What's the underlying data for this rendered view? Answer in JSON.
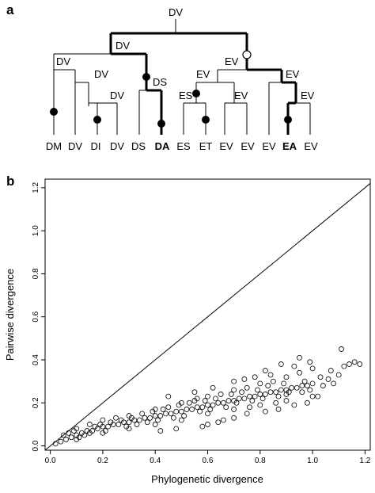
{
  "panel_a": {
    "label": "a",
    "tree": {
      "root_label": "DV",
      "node_labels": [
        "DV",
        "DV",
        "DV",
        "DV",
        "DS",
        "EV",
        "EV",
        "ES",
        "EV",
        "EV",
        "EV"
      ],
      "leaves": [
        {
          "text": "DM",
          "bold": false
        },
        {
          "text": "DV",
          "bold": false
        },
        {
          "text": "DI",
          "bold": false
        },
        {
          "text": "DV",
          "bold": false
        },
        {
          "text": "DS",
          "bold": false
        },
        {
          "text": "DA",
          "bold": true
        },
        {
          "text": "ES",
          "bold": false
        },
        {
          "text": "ET",
          "bold": false
        },
        {
          "text": "EV",
          "bold": false
        },
        {
          "text": "EV",
          "bold": false
        },
        {
          "text": "EV",
          "bold": false
        },
        {
          "text": "EA",
          "bold": true
        },
        {
          "text": "EV",
          "bold": false
        }
      ]
    }
  },
  "panel_b": {
    "label": "b",
    "chart_data": {
      "type": "scatter",
      "xlabel": "Phylogenetic divergence",
      "ylabel": "Pairwise divergence",
      "xlim": [
        -0.02,
        1.22
      ],
      "ylim": [
        -0.02,
        1.24
      ],
      "x_ticks": [
        "0.0",
        "0.2",
        "0.4",
        "0.6",
        "0.8",
        "1.0",
        "1.2"
      ],
      "y_ticks": [
        "0.0",
        "0.2",
        "0.4",
        "0.6",
        "0.8",
        "1.0",
        "1.2"
      ],
      "reference_line": {
        "slope": 1,
        "intercept": 0
      },
      "grid": false,
      "points": [
        [
          0.02,
          0.01
        ],
        [
          0.04,
          0.02
        ],
        [
          0.06,
          0.03
        ],
        [
          0.08,
          0.04
        ],
        [
          0.1,
          0.05
        ],
        [
          0.12,
          0.06
        ],
        [
          0.14,
          0.07
        ],
        [
          0.16,
          0.07
        ],
        [
          0.18,
          0.08
        ],
        [
          0.2,
          0.09
        ],
        [
          0.22,
          0.09
        ],
        [
          0.24,
          0.1
        ],
        [
          0.26,
          0.1
        ],
        [
          0.28,
          0.11
        ],
        [
          0.3,
          0.11
        ],
        [
          0.32,
          0.12
        ],
        [
          0.34,
          0.12
        ],
        [
          0.36,
          0.13
        ],
        [
          0.38,
          0.13
        ],
        [
          0.4,
          0.14
        ],
        [
          0.42,
          0.14
        ],
        [
          0.44,
          0.15
        ],
        [
          0.46,
          0.15
        ],
        [
          0.48,
          0.16
        ],
        [
          0.5,
          0.16
        ],
        [
          0.52,
          0.17
        ],
        [
          0.54,
          0.17
        ],
        [
          0.56,
          0.18
        ],
        [
          0.58,
          0.18
        ],
        [
          0.6,
          0.19
        ],
        [
          0.62,
          0.19
        ],
        [
          0.64,
          0.2
        ],
        [
          0.66,
          0.2
        ],
        [
          0.68,
          0.21
        ],
        [
          0.7,
          0.21
        ],
        [
          0.72,
          0.22
        ],
        [
          0.74,
          0.22
        ],
        [
          0.76,
          0.23
        ],
        [
          0.78,
          0.23
        ],
        [
          0.8,
          0.24
        ],
        [
          0.82,
          0.24
        ],
        [
          0.84,
          0.25
        ],
        [
          0.86,
          0.25
        ],
        [
          0.88,
          0.26
        ],
        [
          0.9,
          0.26
        ],
        [
          0.92,
          0.27
        ],
        [
          0.94,
          0.27
        ],
        [
          0.96,
          0.28
        ],
        [
          0.98,
          0.28
        ],
        [
          1.0,
          0.29
        ],
        [
          0.1,
          0.08
        ],
        [
          0.15,
          0.1
        ],
        [
          0.2,
          0.12
        ],
        [
          0.25,
          0.13
        ],
        [
          0.3,
          0.14
        ],
        [
          0.35,
          0.15
        ],
        [
          0.4,
          0.17
        ],
        [
          0.45,
          0.18
        ],
        [
          0.5,
          0.2
        ],
        [
          0.55,
          0.21
        ],
        [
          0.6,
          0.23
        ],
        [
          0.65,
          0.24
        ],
        [
          0.7,
          0.26
        ],
        [
          0.75,
          0.27
        ],
        [
          0.8,
          0.29
        ],
        [
          0.85,
          0.3
        ],
        [
          0.9,
          0.32
        ],
        [
          0.95,
          0.34
        ],
        [
          1.0,
          0.36
        ],
        [
          0.1,
          0.03
        ],
        [
          0.2,
          0.06
        ],
        [
          0.3,
          0.08
        ],
        [
          0.4,
          0.1
        ],
        [
          0.5,
          0.12
        ],
        [
          0.6,
          0.15
        ],
        [
          0.7,
          0.17
        ],
        [
          0.8,
          0.19
        ],
        [
          0.9,
          0.21
        ],
        [
          1.0,
          0.23
        ],
        [
          0.45,
          0.23
        ],
        [
          0.55,
          0.25
        ],
        [
          0.62,
          0.27
        ],
        [
          0.7,
          0.3
        ],
        [
          0.78,
          0.32
        ],
        [
          0.82,
          0.35
        ],
        [
          0.88,
          0.38
        ],
        [
          0.95,
          0.41
        ],
        [
          0.99,
          0.39
        ],
        [
          0.93,
          0.37
        ],
        [
          0.6,
          0.1
        ],
        [
          0.66,
          0.12
        ],
        [
          0.7,
          0.13
        ],
        [
          0.75,
          0.15
        ],
        [
          0.82,
          0.16
        ],
        [
          0.87,
          0.17
        ],
        [
          0.93,
          0.19
        ],
        [
          0.98,
          0.2
        ],
        [
          1.02,
          0.23
        ],
        [
          1.04,
          0.28
        ],
        [
          1.06,
          0.31
        ],
        [
          1.08,
          0.29
        ],
        [
          1.1,
          0.33
        ],
        [
          1.12,
          0.37
        ],
        [
          1.14,
          0.38
        ],
        [
          1.16,
          0.39
        ],
        [
          1.18,
          0.38
        ],
        [
          1.11,
          0.45
        ],
        [
          1.07,
          0.35
        ],
        [
          1.03,
          0.32
        ],
        [
          0.05,
          0.05
        ],
        [
          0.07,
          0.06
        ],
        [
          0.09,
          0.07
        ],
        [
          0.11,
          0.04
        ],
        [
          0.13,
          0.05
        ],
        [
          0.15,
          0.06
        ],
        [
          0.17,
          0.09
        ],
        [
          0.19,
          0.1
        ],
        [
          0.21,
          0.07
        ],
        [
          0.23,
          0.11
        ],
        [
          0.27,
          0.12
        ],
        [
          0.29,
          0.09
        ],
        [
          0.31,
          0.13
        ],
        [
          0.33,
          0.1
        ],
        [
          0.37,
          0.11
        ],
        [
          0.39,
          0.16
        ],
        [
          0.41,
          0.12
        ],
        [
          0.43,
          0.17
        ],
        [
          0.47,
          0.13
        ],
        [
          0.49,
          0.19
        ],
        [
          0.51,
          0.14
        ],
        [
          0.53,
          0.2
        ],
        [
          0.57,
          0.16
        ],
        [
          0.59,
          0.21
        ],
        [
          0.61,
          0.17
        ],
        [
          0.63,
          0.22
        ],
        [
          0.67,
          0.18
        ],
        [
          0.69,
          0.24
        ],
        [
          0.71,
          0.2
        ],
        [
          0.73,
          0.25
        ],
        [
          0.77,
          0.21
        ],
        [
          0.79,
          0.26
        ],
        [
          0.81,
          0.22
        ],
        [
          0.83,
          0.28
        ],
        [
          0.87,
          0.23
        ],
        [
          0.89,
          0.29
        ],
        [
          0.91,
          0.25
        ],
        [
          0.97,
          0.3
        ],
        [
          0.99,
          0.26
        ],
        [
          0.58,
          0.09
        ],
        [
          0.42,
          0.07
        ],
        [
          0.48,
          0.08
        ],
        [
          0.64,
          0.11
        ],
        [
          0.74,
          0.31
        ],
        [
          0.84,
          0.33
        ],
        [
          0.9,
          0.24
        ],
        [
          0.96,
          0.25
        ],
        [
          0.86,
          0.2
        ],
        [
          0.76,
          0.18
        ],
        [
          0.56,
          0.22
        ]
      ]
    }
  }
}
